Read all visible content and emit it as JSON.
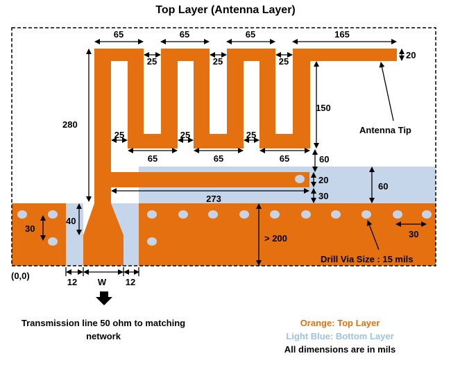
{
  "title": "Top Layer (Antenna Layer)",
  "dimensions": {
    "seg_top_1": "65",
    "seg_top_2": "65",
    "seg_top_3": "65",
    "seg_top_4": "165",
    "gap_top_1": "25",
    "gap_top_2": "25",
    "gap_top_3": "25",
    "tip_width": "20",
    "height_total": "280",
    "meander_height": "150",
    "gap_bot_1": "25",
    "gap_bot_2": "25",
    "gap_bot_3": "25",
    "seg_bot_1": "65",
    "seg_bot_2": "65",
    "seg_bot_3": "65",
    "gap_to_arm": "60",
    "arm_width": "20",
    "arm_to_ground": "30",
    "arm_length": "273",
    "bottom_region": "60",
    "via_pitch_vertical": "30",
    "feed_taper": "40",
    "ground_height": "> 200",
    "via_pitch_horizontal": "30",
    "feed_gap_left": "12",
    "feed_width": "W",
    "feed_gap_right": "12"
  },
  "labels": {
    "antenna_tip": "Antenna Tip",
    "drill_via": "Drill Via Size : 15 mils",
    "origin": "(0,0)",
    "transmission_line": "Transmission line 50 ohm to matching network"
  },
  "legend": {
    "orange": "Orange: Top Layer",
    "blue": "Light Blue: Bottom Layer",
    "units": "All dimensions are in mils"
  },
  "colors": {
    "orange": "#e5700f",
    "blue": "#c5d5ea",
    "via": "#c6d4e8",
    "orange_text": "#e5700f",
    "blue_text": "#9cc2e5"
  }
}
